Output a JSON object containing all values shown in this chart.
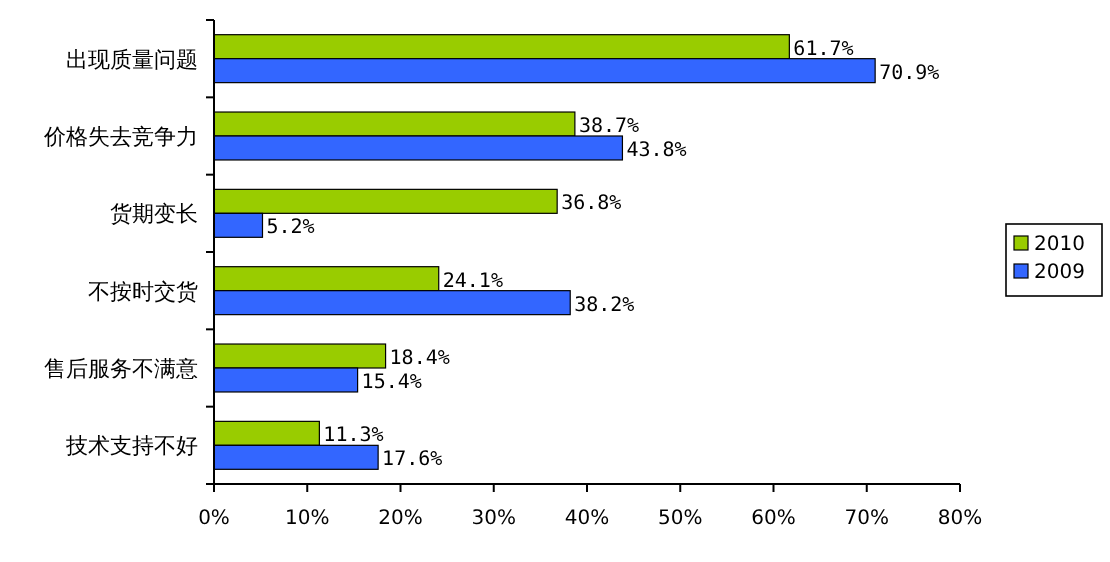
{
  "chart_data": {
    "type": "bar",
    "orientation": "horizontal",
    "categories": [
      "出现质量问题",
      "价格失去竞争力",
      "货期变长",
      "不按时交货",
      "售后服务不满意",
      "技术支持不好"
    ],
    "series": [
      {
        "name": "2010",
        "color": "#99cc00",
        "values": [
          61.7,
          38.7,
          36.8,
          24.1,
          18.4,
          11.3
        ],
        "value_labels": [
          "61.7%",
          "38.7%",
          "36.8%",
          "24.1%",
          "18.4%",
          "11.3%"
        ]
      },
      {
        "name": "2009",
        "color": "#3366ff",
        "values": [
          70.9,
          43.8,
          5.2,
          38.2,
          15.4,
          17.6
        ],
        "value_labels": [
          "70.9%",
          "43.8%",
          "5.2%",
          "38.2%",
          "15.4%",
          "17.6%"
        ]
      }
    ],
    "xlim": [
      0,
      80
    ],
    "xticks": [
      {
        "value": 0,
        "label": "0%"
      },
      {
        "value": 10,
        "label": "10%"
      },
      {
        "value": 20,
        "label": "20%"
      },
      {
        "value": 30,
        "label": "30%"
      },
      {
        "value": 40,
        "label": "40%"
      },
      {
        "value": 50,
        "label": "50%"
      },
      {
        "value": 60,
        "label": "60%"
      },
      {
        "value": 70,
        "label": "70%"
      },
      {
        "value": 80,
        "label": "80%"
      }
    ],
    "grid": false,
    "legend": "right"
  }
}
